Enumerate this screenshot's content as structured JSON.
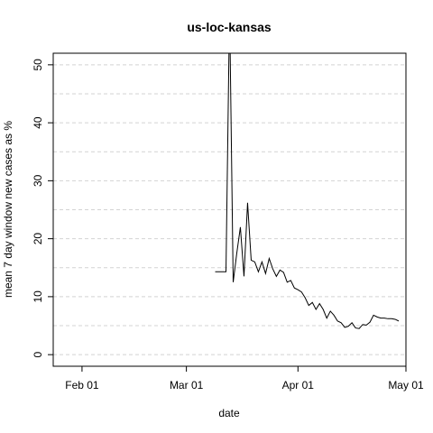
{
  "chart_data": {
    "type": "line",
    "title": "us-loc-kansas",
    "xlabel": "date",
    "ylabel": "mean  7  day window new cases as %",
    "x_ticks": [
      "Feb 01",
      "Mar 01",
      "Apr 01",
      "May 01"
    ],
    "y_ticks": [
      "0",
      "10",
      "20",
      "30",
      "40",
      "50"
    ],
    "ylim": [
      -2,
      52
    ],
    "xlim": [
      "2020-01-24",
      "2020-05-01"
    ],
    "grid": true,
    "series": [
      {
        "x": [
          "2020-03-09",
          "2020-03-10",
          "2020-03-11",
          "2020-03-12",
          "2020-03-13",
          "2020-03-14",
          "2020-03-15",
          "2020-03-16",
          "2020-03-17",
          "2020-03-18",
          "2020-03-19",
          "2020-03-20",
          "2020-03-21",
          "2020-03-22",
          "2020-03-23",
          "2020-03-24",
          "2020-03-25",
          "2020-03-26",
          "2020-03-27",
          "2020-03-28",
          "2020-03-29",
          "2020-03-30",
          "2020-03-31",
          "2020-04-01",
          "2020-04-02",
          "2020-04-03",
          "2020-04-04",
          "2020-04-05",
          "2020-04-06",
          "2020-04-07",
          "2020-04-08",
          "2020-04-09",
          "2020-04-10",
          "2020-04-11",
          "2020-04-12",
          "2020-04-13",
          "2020-04-14",
          "2020-04-15",
          "2020-04-16",
          "2020-04-17",
          "2020-04-18",
          "2020-04-19",
          "2020-04-20",
          "2020-04-21",
          "2020-04-22",
          "2020-04-23",
          "2020-04-24",
          "2020-04-25",
          "2020-04-26",
          "2020-04-27",
          "2020-04-28",
          "2020-04-29"
        ],
        "y": [
          14.3,
          14.3,
          14.3,
          14.3,
          60,
          12.5,
          17.5,
          22,
          13.5,
          26.2,
          16.3,
          16,
          14.3,
          16,
          14,
          16.6,
          14.8,
          13.5,
          14.6,
          14.2,
          12.5,
          12.8,
          11.5,
          11.2,
          10.8,
          9.8,
          8.5,
          9,
          7.8,
          8.8,
          7.8,
          6.3,
          7.5,
          6.8,
          5.8,
          5.5,
          4.7,
          4.9,
          5.5,
          4.6,
          4.5,
          5.2,
          5.1,
          5.6,
          6.8,
          6.5,
          6.3,
          6.3,
          6.2,
          6.2,
          6.1,
          5.8
        ]
      }
    ]
  }
}
